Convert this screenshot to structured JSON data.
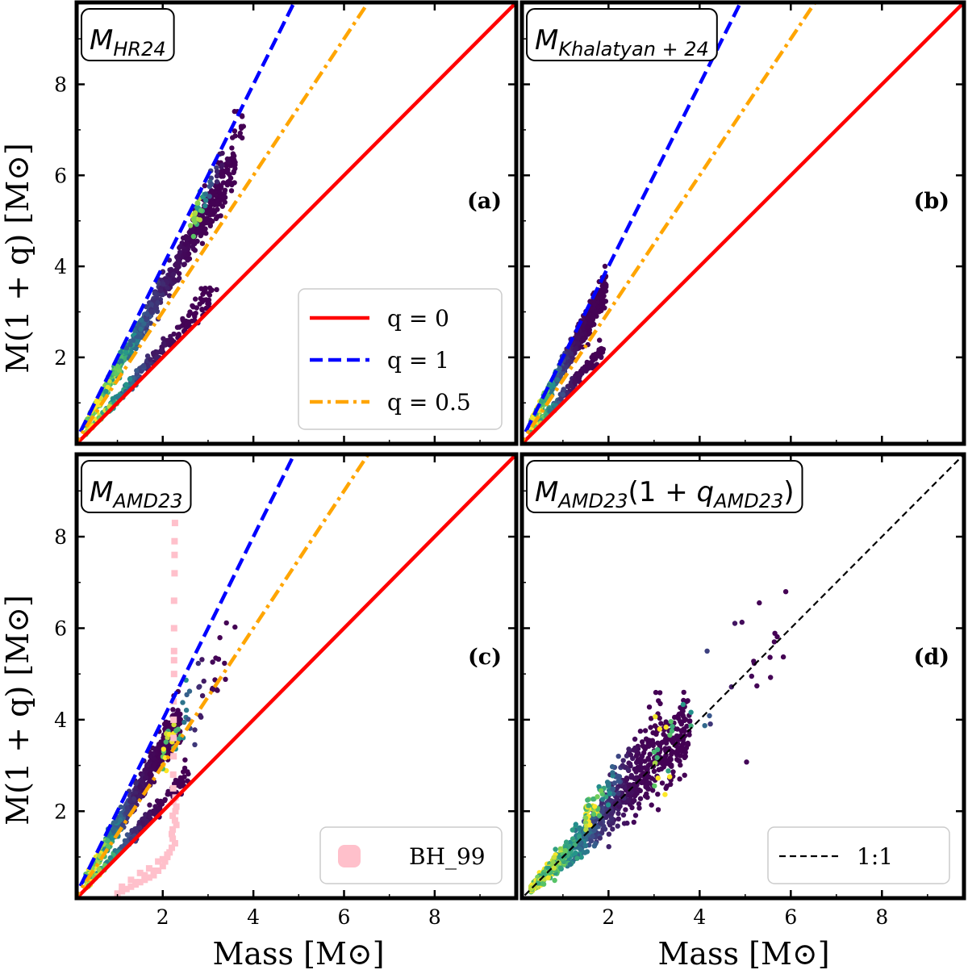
{
  "figure": {
    "y_axis_label": "M(1 + q) [M⊙]",
    "x_axis_label": "Mass [M⊙]"
  },
  "colors": {
    "q0": "#ff0000",
    "q1": "#0000ff",
    "q05": "#ffa500",
    "bh99": "#ffc0cb",
    "one_to_one": "#000000",
    "density_low": "#440154",
    "density_mid": "#21918c",
    "density_high": "#fde725"
  },
  "chart_data": [
    {
      "panel": "a",
      "type": "scatter",
      "title": "M_HR24",
      "title_main": "M",
      "title_sub": "HR24",
      "tag": "(a)",
      "xlim": [
        0.1,
        9.8
      ],
      "ylim": [
        0.1,
        9.8
      ],
      "xticks": [
        2,
        4,
        6,
        8
      ],
      "yticks": [
        2,
        4,
        6,
        8
      ],
      "xlabel": "",
      "ylabel": "M(1 + q) [M⊙]",
      "hexbin": true,
      "lines": [
        {
          "name": "q = 0",
          "slope": 1.0,
          "style": "solid",
          "color": "#ff0000"
        },
        {
          "name": "q = 1",
          "slope": 2.0,
          "style": "dashed",
          "color": "#0000ff"
        },
        {
          "name": "q = 0.5",
          "slope": 1.5,
          "style": "dashdot",
          "color": "#ffa500"
        }
      ],
      "legend": {
        "placement": "lower-right",
        "entries": [
          "q = 0",
          "q = 1",
          "q = 0.5"
        ]
      }
    },
    {
      "panel": "b",
      "type": "scatter",
      "title": "M_Khalatyan+24",
      "title_main": "M",
      "title_sub": "Khalatyan + 24",
      "tag": "(b)",
      "xlim": [
        0.1,
        9.8
      ],
      "ylim": [
        0.1,
        9.8
      ],
      "xticks": [
        2,
        4,
        6,
        8
      ],
      "yticks": [
        2,
        4,
        6,
        8
      ],
      "xlabel": "",
      "ylabel": "",
      "hexbin": true,
      "lines": [
        {
          "name": "q = 0",
          "slope": 1.0,
          "style": "solid",
          "color": "#ff0000"
        },
        {
          "name": "q = 1",
          "slope": 2.0,
          "style": "dashed",
          "color": "#0000ff"
        },
        {
          "name": "q = 0.5",
          "slope": 1.5,
          "style": "dashdot",
          "color": "#ffa500"
        }
      ]
    },
    {
      "panel": "c",
      "type": "scatter",
      "title": "M_AMD23",
      "title_main": "M",
      "title_sub": "AMD23",
      "tag": "(c)",
      "xlim": [
        0.1,
        9.8
      ],
      "ylim": [
        0.1,
        9.8
      ],
      "xticks": [
        2,
        4,
        6,
        8
      ],
      "yticks": [
        2,
        4,
        6,
        8
      ],
      "xlabel": "Mass [M⊙]",
      "ylabel": "M(1 + q) [M⊙]",
      "hexbin": true,
      "lines": [
        {
          "name": "q = 0",
          "slope": 1.0,
          "style": "solid",
          "color": "#ff0000"
        },
        {
          "name": "q = 1",
          "slope": 2.0,
          "style": "dashed",
          "color": "#0000ff"
        },
        {
          "name": "q = 0.5",
          "slope": 1.5,
          "style": "dashdot",
          "color": "#ffa500"
        }
      ],
      "bh99_series": {
        "name": "BH_99",
        "x": [
          1.0,
          1.1,
          1.2,
          1.3,
          1.4,
          1.5,
          1.6,
          1.7,
          1.8,
          1.9,
          2.0,
          2.05,
          2.1,
          2.15,
          2.2,
          2.22,
          2.22,
          2.22,
          2.23,
          2.23,
          2.23,
          2.24,
          2.24,
          2.24,
          2.24,
          2.25,
          2.25,
          2.25,
          2.25,
          2.25,
          2.26,
          2.26,
          2.26,
          2.27,
          2.27,
          2.27,
          2.28,
          2.28,
          2.3,
          2.3,
          1.3,
          1.5,
          1.7,
          1.9,
          2.1,
          2.2,
          1.1,
          1.4,
          1.6,
          1.8,
          2.0
        ],
        "y": [
          0.2,
          0.25,
          0.3,
          0.35,
          0.4,
          0.45,
          0.5,
          0.55,
          0.6,
          0.7,
          0.8,
          0.9,
          1.0,
          1.1,
          1.2,
          1.4,
          1.6,
          1.9,
          2.2,
          2.5,
          2.8,
          3.2,
          3.6,
          4.0,
          4.4,
          5.0,
          5.3,
          5.5,
          6.0,
          6.6,
          7.2,
          7.6,
          7.9,
          8.3,
          1.3,
          1.8,
          2.0,
          2.3,
          1.7,
          2.1,
          0.5,
          0.65,
          0.75,
          0.9,
          1.05,
          1.5,
          0.35,
          0.45,
          0.6,
          0.7,
          0.95
        ]
      },
      "legend": {
        "placement": "lower-right",
        "entries": [
          "BH_99"
        ]
      }
    },
    {
      "panel": "d",
      "type": "scatter",
      "title": "M_AMD23(1+q_AMD23)",
      "title_main": "M",
      "title_sub": "AMD23",
      "title_mid": "(1 + ",
      "title_q": "q",
      "title_end": ")",
      "tag": "(d)",
      "xlim": [
        0.1,
        9.8
      ],
      "ylim": [
        0.1,
        9.8
      ],
      "xticks": [
        2,
        4,
        6,
        8
      ],
      "yticks": [
        2,
        4,
        6,
        8
      ],
      "xlabel": "Mass [M⊙]",
      "ylabel": "",
      "hexbin": true,
      "lines": [
        {
          "name": "1:1",
          "slope": 1.0,
          "style": "dashed-thin",
          "color": "#000000"
        }
      ],
      "legend": {
        "placement": "lower-right",
        "entries": [
          "1:1"
        ]
      }
    }
  ]
}
